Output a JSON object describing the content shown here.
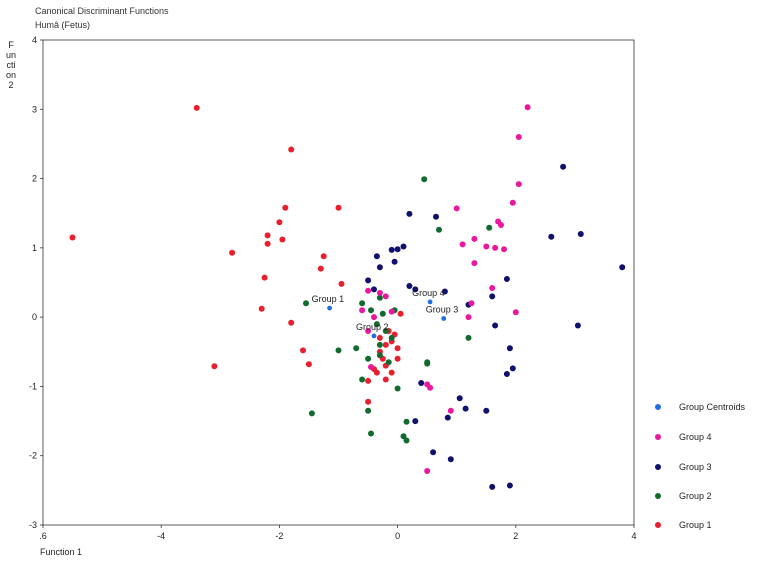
{
  "header": {
    "title": "Canonical Discriminant Functions",
    "subtitle": "Humâ (Fetus)"
  },
  "chart_data": {
    "type": "scatter",
    "title": "Canonical Discriminant Functions",
    "subtitle": "Humâ (Fetus)",
    "xlabel": "Function 1",
    "ylabel": "Function 2",
    "xlim": [
      -6,
      4
    ],
    "ylim": [
      -3,
      4
    ],
    "x_ticks": [
      ".6",
      "-4",
      "-2",
      "0",
      "2",
      "4"
    ],
    "y_ticks": [
      "4",
      "3",
      "2",
      "1",
      "0",
      "-1",
      "-2",
      "-3"
    ],
    "grid": false,
    "legend_position": "right",
    "legend": [
      "Group Centroids",
      "Group 4",
      "Group 3",
      "Group 2",
      "Group 1"
    ],
    "colors": {
      "Group Centroids": "#1f6fe0",
      "Group 4": "#e8199c",
      "Group 3": "#10106e",
      "Group 2": "#126b2e",
      "Group 1": "#e8202e"
    },
    "centroid_labels": [
      {
        "name": "Group 1",
        "x": -1.15,
        "y": 0.13
      },
      {
        "name": "Group 2",
        "x": -0.4,
        "y": -0.27
      },
      {
        "name": "Group 3",
        "x": 0.78,
        "y": -0.02
      },
      {
        "name": "Group 4",
        "x": 0.55,
        "y": 0.22
      }
    ],
    "series": [
      {
        "name": "Group 1",
        "points": [
          [
            -3.4,
            3.02
          ],
          [
            -5.5,
            1.15
          ],
          [
            -1.8,
            2.42
          ],
          [
            -1.9,
            1.58
          ],
          [
            -1.0,
            1.58
          ],
          [
            -2.0,
            1.37
          ],
          [
            -1.95,
            1.12
          ],
          [
            -2.2,
            1.18
          ],
          [
            -2.2,
            1.06
          ],
          [
            -2.8,
            0.93
          ],
          [
            -1.25,
            0.88
          ],
          [
            -1.3,
            0.7
          ],
          [
            -0.95,
            0.48
          ],
          [
            -2.25,
            0.57
          ],
          [
            -2.3,
            0.12
          ],
          [
            -1.8,
            -0.08
          ],
          [
            -1.6,
            -0.48
          ],
          [
            -1.5,
            -0.68
          ],
          [
            -3.1,
            -0.71
          ],
          [
            -0.5,
            -1.22
          ],
          [
            -0.3,
            -0.3
          ],
          [
            -0.2,
            -0.4
          ],
          [
            -0.1,
            -0.35
          ],
          [
            0.0,
            -0.45
          ],
          [
            -0.25,
            -0.6
          ],
          [
            -0.35,
            -0.8
          ],
          [
            -0.2,
            -0.9
          ],
          [
            -0.1,
            -0.8
          ],
          [
            0.0,
            -0.6
          ],
          [
            -0.3,
            -0.5
          ],
          [
            0.05,
            0.05
          ],
          [
            -0.15,
            -0.2
          ],
          [
            -0.05,
            -0.25
          ],
          [
            -0.4,
            -0.75
          ],
          [
            -0.5,
            -0.92
          ],
          [
            -0.2,
            -0.7
          ]
        ]
      },
      {
        "name": "Group 2",
        "points": [
          [
            0.45,
            1.99
          ],
          [
            0.7,
            1.26
          ],
          [
            1.55,
            1.29
          ],
          [
            -1.55,
            0.2
          ],
          [
            -0.45,
            0.1
          ],
          [
            -0.6,
            0.2
          ],
          [
            -0.3,
            0.28
          ],
          [
            -0.25,
            0.05
          ],
          [
            -0.35,
            -0.1
          ],
          [
            -0.2,
            -0.2
          ],
          [
            -0.3,
            -0.4
          ],
          [
            -0.3,
            -0.55
          ],
          [
            -0.15,
            -0.65
          ],
          [
            -0.5,
            -0.6
          ],
          [
            -0.7,
            -0.45
          ],
          [
            -0.6,
            -0.9
          ],
          [
            -1.0,
            -0.48
          ],
          [
            0.5,
            -0.65
          ],
          [
            0.5,
            -0.67
          ],
          [
            1.2,
            -0.3
          ],
          [
            -0.5,
            -1.35
          ],
          [
            -1.45,
            -1.39
          ],
          [
            0.15,
            -1.51
          ],
          [
            0.1,
            -1.72
          ],
          [
            0.15,
            -1.78
          ],
          [
            -0.45,
            -1.68
          ],
          [
            -0.1,
            -0.3
          ],
          [
            0.0,
            -1.03
          ],
          [
            -0.05,
            0.1
          ]
        ]
      },
      {
        "name": "Group 3",
        "points": [
          [
            0.2,
            1.49
          ],
          [
            0.65,
            1.45
          ],
          [
            0.1,
            1.02
          ],
          [
            0.0,
            0.98
          ],
          [
            -0.1,
            0.97
          ],
          [
            -0.35,
            0.88
          ],
          [
            -0.3,
            0.72
          ],
          [
            -0.05,
            0.8
          ],
          [
            -0.5,
            0.53
          ],
          [
            -0.4,
            0.4
          ],
          [
            0.2,
            0.45
          ],
          [
            0.3,
            0.4
          ],
          [
            0.8,
            0.37
          ],
          [
            1.2,
            0.18
          ],
          [
            1.6,
            0.3
          ],
          [
            1.85,
            0.55
          ],
          [
            2.6,
            1.16
          ],
          [
            3.1,
            1.2
          ],
          [
            2.8,
            2.17
          ],
          [
            3.8,
            0.72
          ],
          [
            3.05,
            -0.12
          ],
          [
            1.65,
            -0.12
          ],
          [
            1.9,
            -0.45
          ],
          [
            1.85,
            -0.82
          ],
          [
            1.95,
            -0.74
          ],
          [
            1.15,
            -1.32
          ],
          [
            1.05,
            -1.17
          ],
          [
            1.5,
            -1.35
          ],
          [
            0.85,
            -1.45
          ],
          [
            0.6,
            -1.95
          ],
          [
            0.9,
            -2.05
          ],
          [
            1.6,
            -2.45
          ],
          [
            1.9,
            -2.43
          ],
          [
            0.3,
            -1.5
          ],
          [
            0.4,
            -0.95
          ]
        ]
      },
      {
        "name": "Group 4",
        "points": [
          [
            2.2,
            3.03
          ],
          [
            2.05,
            2.6
          ],
          [
            2.05,
            1.92
          ],
          [
            1.95,
            1.65
          ],
          [
            1.7,
            1.38
          ],
          [
            1.75,
            1.33
          ],
          [
            1.0,
            1.57
          ],
          [
            1.1,
            1.05
          ],
          [
            1.3,
            1.13
          ],
          [
            1.5,
            1.02
          ],
          [
            1.65,
            1.0
          ],
          [
            1.8,
            0.98
          ],
          [
            1.3,
            0.78
          ],
          [
            1.6,
            0.42
          ],
          [
            1.25,
            0.2
          ],
          [
            2.0,
            0.07
          ],
          [
            1.2,
            0.0
          ],
          [
            -0.5,
            0.38
          ],
          [
            -0.6,
            0.1
          ],
          [
            -0.4,
            0.0
          ],
          [
            -0.5,
            -0.2
          ],
          [
            -0.1,
            0.08
          ],
          [
            -0.2,
            0.3
          ],
          [
            0.5,
            -0.97
          ],
          [
            0.55,
            -1.02
          ],
          [
            0.5,
            -2.22
          ],
          [
            0.9,
            -1.35
          ],
          [
            -0.3,
            0.35
          ],
          [
            -0.45,
            -0.72
          ]
        ]
      },
      {
        "name": "Group Centroids",
        "points": [
          [
            -1.15,
            0.13
          ],
          [
            -0.4,
            -0.27
          ],
          [
            0.78,
            -0.02
          ],
          [
            0.55,
            0.22
          ]
        ]
      }
    ]
  }
}
